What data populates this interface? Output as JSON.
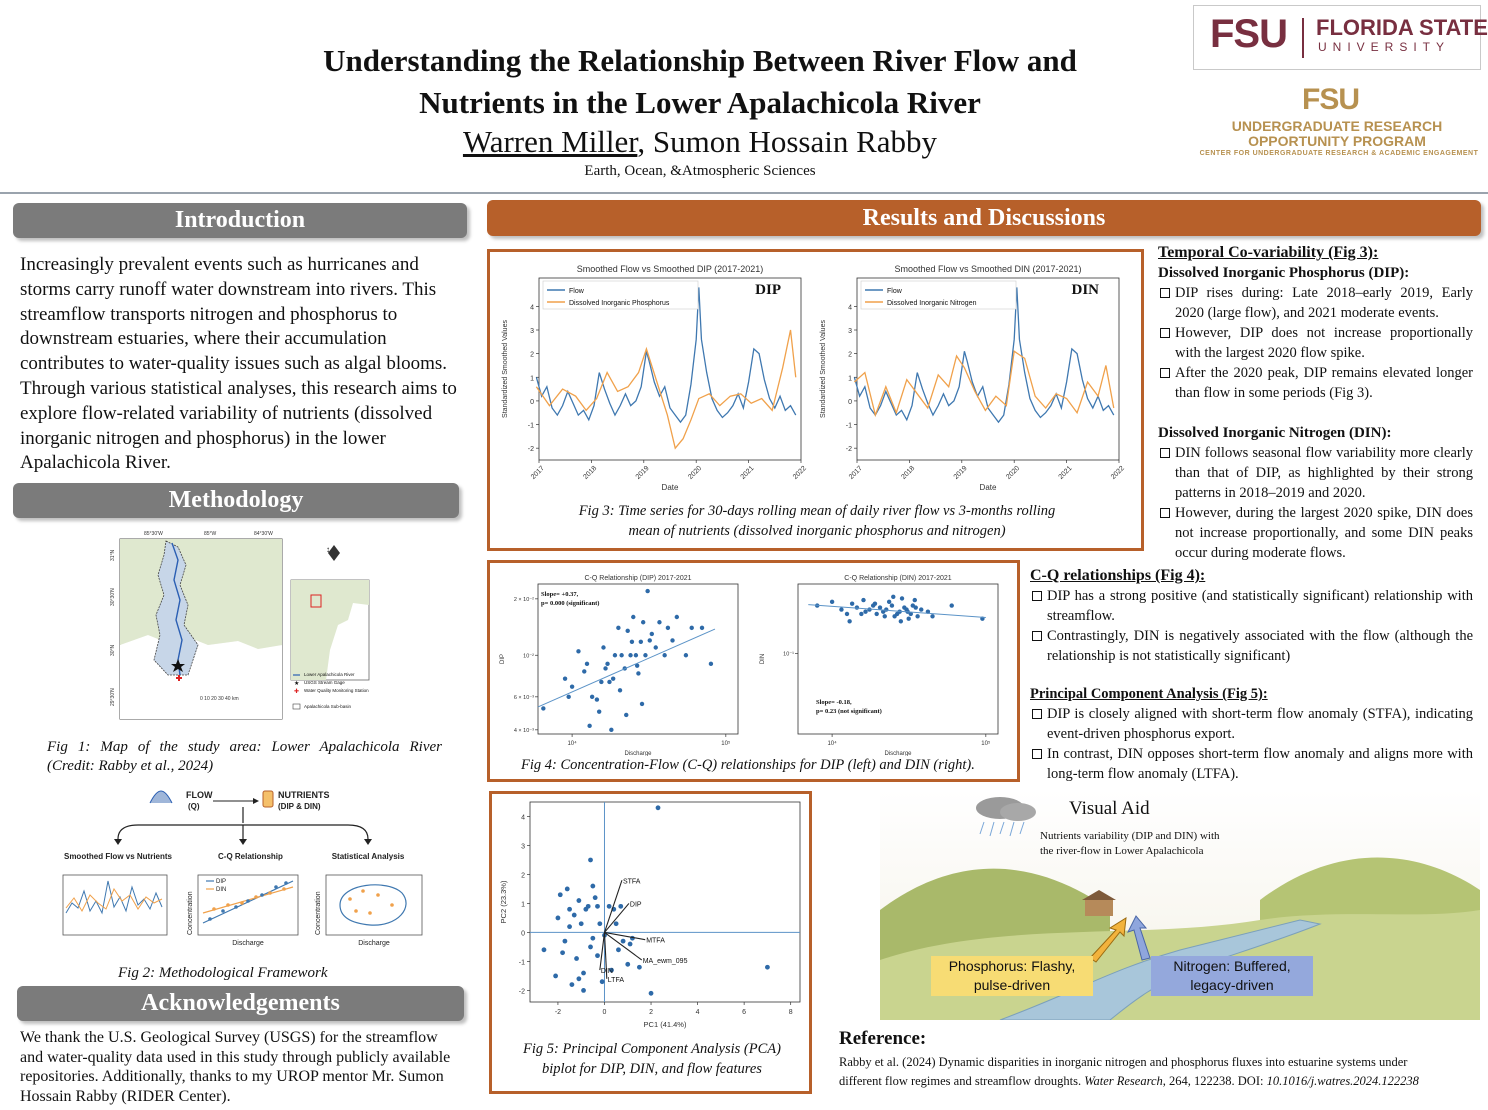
{
  "header": {
    "title_line1": "Understanding the Relationship Between River Flow and",
    "title_line2": "Nutrients in the Lower Apalachicola River",
    "author1": "Warren Miller",
    "author_rest": ", Sumon Hossain Rabby",
    "department": "Earth, Ocean, &Atmospheric Sciences"
  },
  "logos": {
    "fsu_monogram": "FSU",
    "fsu_name_line1": "FLORIDA STATE",
    "fsu_name_line2": "UNIVERSITY",
    "urop_monogram": "FSU",
    "urop_line1": "UNDERGRADUATE RESEARCH",
    "urop_line2": "OPPORTUNITY PROGRAM",
    "urop_line3": "CENTER FOR UNDERGRADUATE RESEARCH & ACADEMIC ENGAGEMENT",
    "brand_color": "#782f40",
    "gold_color": "#b79150"
  },
  "introduction": {
    "heading": "Introduction",
    "text": "Increasingly prevalent events such as hurricanes and storms carry runoff water downstream into rivers. This streamflow transports nitrogen and phosphorus to downstream estuaries, where their accumulation contributes to water-quality issues such as algal blooms. Through various statistical analyses, this research aims to explore flow-related variability of nutrients (dissolved inorganic nitrogen and phosphorus) in the lower Apalachicola River."
  },
  "methodology": {
    "heading": "Methodology",
    "fig1_caption_line1": "Fig 1: Map of the study area: Lower Apalachicola River",
    "fig1_caption_line2": "(Credit: Rabby et al., 2024)",
    "map_lon_labels": [
      "85°30'W",
      "85°W",
      "84°30'W"
    ],
    "map_lat_labels": [
      "31°N",
      "30°30'N",
      "30°N",
      "29°30'N"
    ],
    "map_scale": "0 10 20 30 40 km",
    "map_legend": [
      "Lower Apalachicola River",
      "USGS Stream Gage",
      "Water Quality Monitoring Station",
      "Apalachicola Sub-basin"
    ],
    "framework": {
      "flow_label": "FLOW",
      "flow_sub": "(Q)",
      "nutrients_label": "NUTRIENTS",
      "nutrients_sub": "(DIP & DIN)",
      "panel1": "Smoothed Flow vs Nutrients",
      "panel2": "C-Q Relationship",
      "panel3": "Statistical Analysis",
      "panel2_legend": [
        "DIP",
        "DIN"
      ],
      "axis_x": "Discharge",
      "axis_y": "Concentration"
    },
    "fig2_caption": "Fig 2: Methodological Framework"
  },
  "acknowledgements": {
    "heading": "Acknowledgements",
    "text": "We thank the U.S. Geological Survey (USGS) for the streamflow and water-quality data used in this study through publicly available repositories. Additionally, thanks to my UROP mentor Mr. Sumon Hossain Rabby (RIDER Center)."
  },
  "results": {
    "heading": "Results and Discussions",
    "fig3_caption_line1": "Fig 3: Time series for 30-days rolling mean of daily river flow vs 3-months rolling",
    "fig3_caption_line2": "mean of nutrients (dissolved inorganic phosphorus and nitrogen)",
    "fig4_caption": "Fig 4: Concentration-Flow (C-Q) relationships for DIP (left) and DIN (right).",
    "fig5_caption_line1": "Fig 5: Principal Component Analysis (PCA)",
    "fig5_caption_line2": "biplot for DIP, DIN, and flow features"
  },
  "right_text": {
    "temporal_heading": "Temporal Co-variability (Fig 3):",
    "dip_heading": "Dissolved Inorganic Phosphorus (DIP):",
    "dip_bullets": [
      "DIP rises during: Late 2018–early 2019, Early 2020 (large flow), and 2021 moderate events.",
      "However, DIP does not increase proportionally with the largest 2020 flow spike.",
      "After the 2020 peak, DIP remains elevated longer than flow in some periods (Fig 3)."
    ],
    "din_heading": "Dissolved Inorganic Nitrogen (DIN):",
    "din_bullets": [
      "DIN follows seasonal flow variability more clearly than that of DIP, as highlighted by their strong patterns in 2018–2019 and 2020.",
      "However, during the largest 2020 spike, DIN does not increase proportionally, and some DIN peaks occur during moderate flows."
    ],
    "cq_heading": "C-Q relationships (Fig 4):",
    "cq_bullets": [
      "DIP has a strong positive (and statistically significant) relationship with streamflow.",
      "Contrastingly, DIN is negatively associated with the flow (although the relationship is not statistically significant)"
    ],
    "pca_heading": "Principal Component Analysis (Fig 5):",
    "pca_bullets": [
      "DIP is closely aligned with short-term flow anomaly (STFA), indicating event-driven phosphorus export.",
      "In contrast, DIN opposes short-term flow anomaly and aligns more with long-term flow anomaly (LTFA)."
    ]
  },
  "visual_aid": {
    "title": "Visual Aid",
    "subtitle_line1": "Nutrients variability (DIP and DIN) with",
    "subtitle_line2": "the river-flow in Lower Apalachicola",
    "phosphorus_line1": "Phosphorus: Flashy,",
    "phosphorus_line2": "pulse-driven",
    "nitrogen_line1": "Nitrogen: Buffered,",
    "nitrogen_line2": "legacy-driven",
    "phosphorus_color": "#f7dc74",
    "nitrogen_color": "#94a8dc"
  },
  "reference": {
    "heading": "Reference:",
    "line1": "Rabby et al. (2024) Dynamic disparities in inorganic nitrogen and phosphorus fluxes into estuarine systems under",
    "line2_pre": "different flow regimes and streamflow droughts. ",
    "journal": "Water Research",
    "line2_mid": ", 264, 122238. DOI: ",
    "doi": "10.1016/j.watres.2024.122238"
  },
  "chart_data": [
    {
      "type": "line",
      "title": "Smoothed Flow vs Smoothed DIP (2017-2021)",
      "panel_label": "DIP",
      "xlabel": "Date",
      "ylabel": "Standardized Smoothed Values",
      "x_ticks": [
        "2017",
        "2018",
        "2019",
        "2020",
        "2021",
        "2022"
      ],
      "y_ticks": [
        -2,
        -1,
        0,
        1,
        2,
        3,
        4
      ],
      "xlim": [
        2017,
        2022
      ],
      "ylim": [
        -2.5,
        5.2
      ],
      "legend": "top-left",
      "series": [
        {
          "name": "Flow",
          "color": "#3f78b0",
          "x": [
            2016.95,
            2017.05,
            2017.15,
            2017.25,
            2017.35,
            2017.45,
            2017.55,
            2017.65,
            2017.75,
            2017.85,
            2017.95,
            2018.05,
            2018.15,
            2018.25,
            2018.35,
            2018.45,
            2018.55,
            2018.65,
            2018.75,
            2018.85,
            2018.95,
            2019.05,
            2019.1,
            2019.2,
            2019.3,
            2019.4,
            2019.5,
            2019.6,
            2019.7,
            2019.8,
            2019.9,
            2020.0,
            2020.05,
            2020.1,
            2020.2,
            2020.3,
            2020.4,
            2020.5,
            2020.6,
            2020.7,
            2020.8,
            2020.9,
            2021.0,
            2021.1,
            2021.2,
            2021.3,
            2021.4,
            2021.5,
            2021.6,
            2021.7,
            2021.8,
            2021.9
          ],
          "y": [
            1.0,
            0.2,
            0.6,
            -0.3,
            -0.6,
            -0.2,
            0.4,
            -0.1,
            -0.6,
            -0.4,
            -0.8,
            -0.2,
            1.2,
            0.5,
            -0.1,
            -0.6,
            -0.2,
            0.3,
            -0.2,
            0.0,
            0.6,
            2.1,
            1.7,
            0.8,
            0.2,
            0.6,
            -0.3,
            -0.6,
            -0.9,
            -0.6,
            0.7,
            2.6,
            4.8,
            2.6,
            1.2,
            0.1,
            -0.4,
            -0.7,
            -0.5,
            -0.2,
            0.3,
            -0.3,
            0.8,
            2.2,
            2.0,
            0.9,
            0.1,
            -0.3,
            0.2,
            -0.4,
            -0.2,
            -0.6
          ]
        },
        {
          "name": "Dissolved Inorganic Phosphorus",
          "color": "#f0a14b",
          "x": [
            2016.95,
            2017.2,
            2017.45,
            2017.7,
            2017.9,
            2018.1,
            2018.3,
            2018.5,
            2018.7,
            2018.9,
            2019.05,
            2019.25,
            2019.45,
            2019.6,
            2019.75,
            2019.9,
            2020.05,
            2020.25,
            2020.45,
            2020.65,
            2020.85,
            2021.05,
            2021.25,
            2021.45,
            2021.65,
            2021.8,
            2021.9
          ],
          "y": [
            0.6,
            -0.2,
            0.5,
            0.2,
            -0.4,
            0.1,
            1.2,
            0.4,
            0.6,
            1.2,
            2.2,
            0.8,
            -0.6,
            -2.0,
            -1.6,
            -0.8,
            0.1,
            0.3,
            -0.2,
            0.2,
            0.3,
            -0.1,
            0.1,
            -0.4,
            1.4,
            3.0,
            1.0
          ]
        }
      ]
    },
    {
      "type": "line",
      "title": "Smoothed Flow vs Smoothed DIN (2017-2021)",
      "panel_label": "DIN",
      "xlabel": "Date",
      "ylabel": "Standardized Smoothed Values",
      "x_ticks": [
        "2017",
        "2018",
        "2019",
        "2020",
        "2021",
        "2022"
      ],
      "y_ticks": [
        -2,
        -1,
        0,
        1,
        2,
        3,
        4
      ],
      "xlim": [
        2017,
        2022
      ],
      "ylim": [
        -2.5,
        5.2
      ],
      "legend": "top-left",
      "series": [
        {
          "name": "Flow",
          "color": "#3f78b0",
          "x": [
            2016.95,
            2017.05,
            2017.15,
            2017.25,
            2017.35,
            2017.45,
            2017.55,
            2017.65,
            2017.75,
            2017.85,
            2017.95,
            2018.05,
            2018.15,
            2018.25,
            2018.35,
            2018.45,
            2018.55,
            2018.65,
            2018.75,
            2018.85,
            2018.95,
            2019.05,
            2019.1,
            2019.2,
            2019.3,
            2019.4,
            2019.5,
            2019.6,
            2019.7,
            2019.8,
            2019.9,
            2020.0,
            2020.05,
            2020.1,
            2020.2,
            2020.3,
            2020.4,
            2020.5,
            2020.6,
            2020.7,
            2020.8,
            2020.9,
            2021.0,
            2021.1,
            2021.2,
            2021.3,
            2021.4,
            2021.5,
            2021.6,
            2021.7,
            2021.8,
            2021.9
          ],
          "y": [
            1.0,
            0.2,
            0.6,
            -0.3,
            -0.6,
            -0.2,
            0.4,
            -0.1,
            -0.6,
            -0.4,
            -0.8,
            -0.2,
            1.2,
            0.5,
            -0.1,
            -0.6,
            -0.2,
            0.3,
            -0.2,
            0.0,
            0.6,
            2.1,
            1.7,
            0.8,
            0.2,
            0.6,
            -0.3,
            -0.6,
            -0.9,
            -0.6,
            0.7,
            2.6,
            4.8,
            2.6,
            1.2,
            0.1,
            -0.4,
            -0.7,
            -0.5,
            -0.2,
            0.3,
            -0.3,
            0.8,
            2.2,
            2.0,
            0.9,
            0.1,
            -0.3,
            0.2,
            -0.4,
            -0.2,
            -0.6
          ]
        },
        {
          "name": "Dissolved Inorganic Nitrogen",
          "color": "#f0a14b",
          "x": [
            2016.95,
            2017.15,
            2017.35,
            2017.55,
            2017.75,
            2017.95,
            2018.15,
            2018.35,
            2018.55,
            2018.75,
            2018.9,
            2019.05,
            2019.25,
            2019.45,
            2019.65,
            2019.85,
            2020.0,
            2020.2,
            2020.4,
            2020.6,
            2020.8,
            2021.0,
            2021.2,
            2021.4,
            2021.6,
            2021.75,
            2021.9
          ],
          "y": [
            0.8,
            1.2,
            -0.6,
            0.6,
            -0.5,
            0.9,
            0.3,
            -0.3,
            1.1,
            0.6,
            1.9,
            1.4,
            0.4,
            -0.4,
            0.2,
            -0.2,
            2.1,
            1.8,
            0.2,
            -0.3,
            0.3,
            0.1,
            -0.5,
            0.8,
            0.2,
            1.5,
            -0.3
          ]
        }
      ]
    },
    {
      "type": "scatter",
      "title": "C-Q Relationship (DIP) 2017-2021",
      "xlabel": "Discharge",
      "ylabel": "DIP",
      "annotation_line1": "Slope= +0.37,",
      "annotation_line2": "p= 0.000 (significant)",
      "x_scale": "log",
      "y_scale": "log",
      "x_ticks": [
        "10⁴",
        "10⁵"
      ],
      "y_ticks": [
        "4 × 10⁻³",
        "6 × 10⁻³",
        "10⁻²",
        "2 × 10⁻²"
      ],
      "xlim": [
        6000,
        120000
      ],
      "ylim": [
        0.0038,
        0.024
      ],
      "points_x": [
        6500,
        9000,
        10000,
        11000,
        12000,
        13500,
        15000,
        16000,
        17000,
        17500,
        18000,
        19000,
        20000,
        21000,
        22000,
        23000,
        24000,
        25000,
        26000,
        27000,
        28000,
        29000,
        30000,
        31000,
        32000,
        33000,
        35000,
        37000,
        40000,
        42000,
        45000,
        48000,
        55000,
        60000,
        70000,
        80000,
        9500,
        12500,
        14500,
        16500,
        18500,
        20500,
        22500,
        24500,
        26500,
        28500,
        13000,
        15500
      ],
      "points_y": [
        0.0052,
        0.0075,
        0.0068,
        0.0105,
        0.0082,
        0.006,
        0.005,
        0.011,
        0.009,
        0.0072,
        0.004,
        0.01,
        0.014,
        0.01,
        0.0085,
        0.0135,
        0.01,
        0.016,
        0.01,
        0.008,
        0.0118,
        0.015,
        0.01,
        0.022,
        0.012,
        0.013,
        0.011,
        0.015,
        0.01,
        0.014,
        0.012,
        0.016,
        0.01,
        0.014,
        0.014,
        0.009,
        0.006,
        0.009,
        0.0058,
        0.0085,
        0.0075,
        0.0065,
        0.0048,
        0.0118,
        0.0088,
        0.0055,
        0.0042,
        0.0072
      ],
      "trend": {
        "x": [
          6000,
          85000
        ],
        "y": [
          0.0053,
          0.0138
        ]
      }
    },
    {
      "type": "scatter",
      "title": "C-Q Relationship (DIN) 2017-2021",
      "xlabel": "Discharge",
      "ylabel": "DIN",
      "annotation_line1": "Slope= -0.18,",
      "annotation_line2": "p= 0.23 (not significant)",
      "x_scale": "log",
      "y_scale": "log",
      "x_ticks": [
        "10⁴",
        "10⁵"
      ],
      "y_ticks": [
        "10⁻¹"
      ],
      "xlim": [
        6000,
        120000
      ],
      "ylim": [
        0.02,
        0.4
      ],
      "points_x": [
        8000,
        10000,
        11500,
        12500,
        13500,
        14500,
        15500,
        16500,
        17500,
        18500,
        19500,
        20500,
        21500,
        22500,
        23500,
        24500,
        25500,
        26500,
        27500,
        28500,
        29500,
        30500,
        31500,
        32500,
        33500,
        34500,
        36000,
        38000,
        42000,
        45000,
        60000,
        95000,
        13000,
        16000,
        19000,
        22000,
        25000,
        28000,
        31000,
        35000
      ],
      "points_y": [
        0.26,
        0.28,
        0.24,
        0.22,
        0.27,
        0.25,
        0.22,
        0.23,
        0.24,
        0.26,
        0.22,
        0.25,
        0.23,
        0.24,
        0.28,
        0.26,
        0.21,
        0.22,
        0.23,
        0.3,
        0.25,
        0.24,
        0.2,
        0.22,
        0.26,
        0.29,
        0.21,
        0.24,
        0.23,
        0.21,
        0.26,
        0.2,
        0.19,
        0.29,
        0.27,
        0.21,
        0.31,
        0.19,
        0.23,
        0.25
      ],
      "trend": {
        "x": [
          7000,
          100000
        ],
        "y": [
          0.265,
          0.205
        ]
      }
    },
    {
      "type": "scatter",
      "title": "",
      "xlabel": "PC1 (41.4%)",
      "ylabel": "PC2 (23.3%)",
      "x_ticks": [
        -2,
        0,
        2,
        4,
        6,
        8
      ],
      "y_ticks": [
        -2,
        -1,
        0,
        1,
        2,
        3,
        4
      ],
      "xlim": [
        -3.2,
        8.4
      ],
      "ylim": [
        -2.4,
        4.5
      ],
      "points_x": [
        -2.6,
        -2.1,
        -2.0,
        -1.9,
        -1.7,
        -1.6,
        -1.5,
        -1.4,
        -1.3,
        -1.2,
        -1.1,
        -1.0,
        -0.9,
        -0.8,
        -0.7,
        -0.6,
        -0.5,
        -0.4,
        -0.3,
        -0.2,
        -0.1,
        0.0,
        0.2,
        0.3,
        0.5,
        0.6,
        0.8,
        1.0,
        1.2,
        1.5,
        2.0,
        2.3,
        7.0,
        -0.5,
        -0.6,
        -0.9,
        -1.1,
        -0.3,
        0.4,
        -1.8,
        -1.5,
        0.7,
        1.1
      ],
      "points_y": [
        -0.6,
        -1.5,
        0.5,
        1.3,
        -0.3,
        1.5,
        0.2,
        -1.8,
        0.6,
        -0.9,
        1.1,
        0.3,
        -1.4,
        0.8,
        0.9,
        2.5,
        -0.2,
        1.2,
        -0.8,
        0.3,
        -1.7,
        -0.1,
        0.9,
        -1.3,
        0.3,
        -0.6,
        -0.3,
        -1.1,
        -0.2,
        -1.2,
        -2.1,
        4.3,
        -1.2,
        1.6,
        -0.5,
        -2.0,
        -1.6,
        0.9,
        0.8,
        -0.7,
        0.8,
        0.9,
        -0.4
      ],
      "loadings": [
        {
          "name": "STFA",
          "x": 0.75,
          "y": 1.8
        },
        {
          "name": "DIP",
          "x": 1.05,
          "y": 1.0
        },
        {
          "name": "MTFA",
          "x": 1.75,
          "y": -0.25
        },
        {
          "name": "MA_ewm_095",
          "x": 1.6,
          "y": -0.95
        },
        {
          "name": "DIN",
          "x": -0.2,
          "y": -1.3
        },
        {
          "name": "LTFA",
          "x": 0.1,
          "y": -1.6
        }
      ]
    }
  ]
}
